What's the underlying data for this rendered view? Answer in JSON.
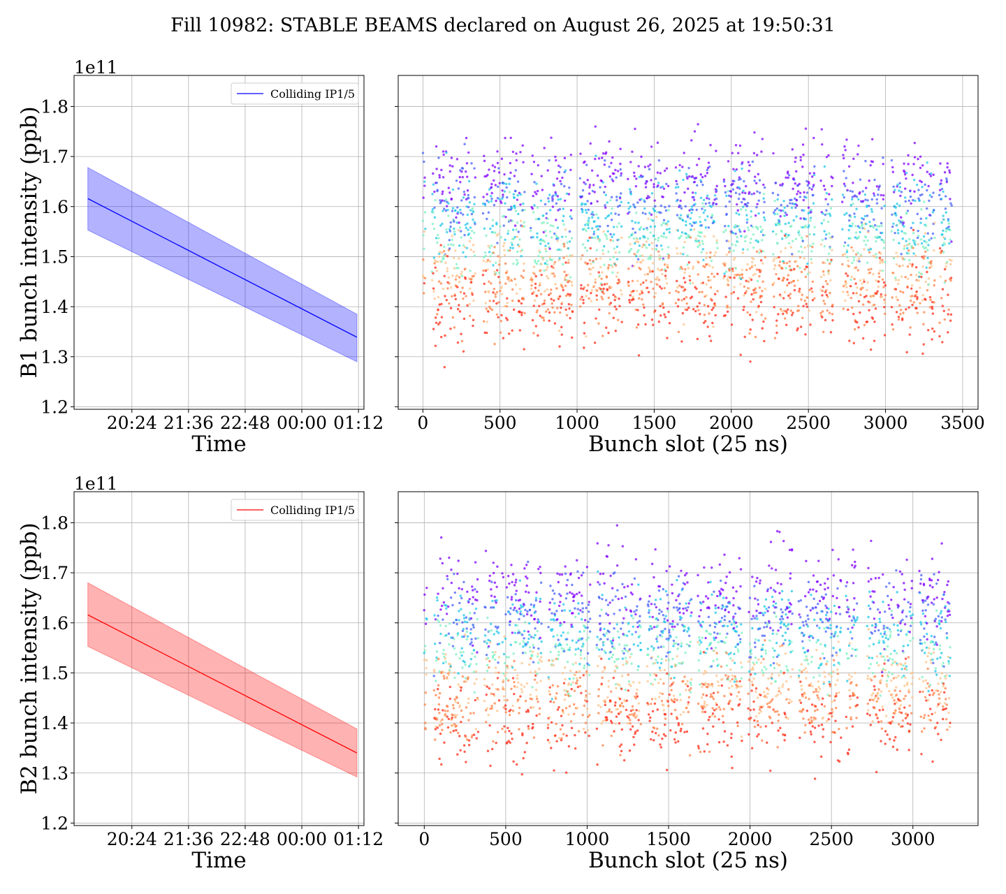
{
  "figure": {
    "suptitle": "Fill 10982: STABLE BEAMS declared on August 26, 2025 at 19:50:31"
  },
  "chart_data": [
    {
      "id": "b1-time",
      "type": "line",
      "title": "",
      "xlabel": "Time",
      "ylabel": "B1 bunch intensity (ppb)",
      "y_offset_label": "1e11",
      "x_tick_labels": [
        "20:24",
        "21:36",
        "22:48",
        "00:00",
        "01:12"
      ],
      "x_tick_minutes": [
        1224,
        1296,
        1368,
        1440,
        1512
      ],
      "xlim_minutes": [
        1150.5,
        1519
      ],
      "ylim": [
        1.195,
        1.862
      ],
      "y_ticks": [
        1.2,
        1.3,
        1.4,
        1.5,
        1.6,
        1.7,
        1.8
      ],
      "y_tick_labels": [
        "1.2",
        "1.3",
        "1.4",
        "1.5",
        "1.6",
        "1.7",
        "1.8"
      ],
      "grid": true,
      "legend": {
        "position": "upper right",
        "entries": [
          "Colliding IP1/5"
        ]
      },
      "series": [
        {
          "name": "Colliding IP1/5",
          "color": "#0000ff",
          "band_color": "#0000ff",
          "x_minutes": [
            1168,
            1510
          ],
          "mean": [
            1.616,
            1.339
          ],
          "upper": [
            1.678,
            1.385
          ],
          "lower": [
            1.553,
            1.29
          ]
        }
      ]
    },
    {
      "id": "b1-slot",
      "type": "scatter",
      "title": "",
      "xlabel": "Bunch slot (25 ns)",
      "ylabel": "",
      "x_ticks": [
        0,
        500,
        1000,
        1500,
        2000,
        2500,
        3000,
        3500
      ],
      "x_tick_labels": [
        "0",
        "500",
        "1000",
        "1500",
        "2000",
        "2500",
        "3000",
        "3500"
      ],
      "y_ticks": [
        1.2,
        1.3,
        1.4,
        1.5,
        1.6,
        1.7,
        1.8
      ],
      "y_tick_labels": [],
      "xlim": [
        -160,
        3600
      ],
      "ylim": [
        1.195,
        1.862
      ],
      "grid": true,
      "colormap": "rainbow",
      "bunch_trains": [
        [
          0,
          15
        ],
        [
          60,
          340
        ],
        [
          390,
          660
        ],
        [
          700,
          970
        ],
        [
          1020,
          1290
        ],
        [
          1330,
          1600
        ],
        [
          1640,
          1910
        ],
        [
          1950,
          2220
        ],
        [
          2270,
          2540
        ],
        [
          2580,
          2660
        ],
        [
          2720,
          3000
        ],
        [
          3040,
          3320
        ],
        [
          3350,
          3430
        ]
      ],
      "bunch_spacing": 3,
      "intensity_range": [
        1.25,
        1.83
      ],
      "color_bands": [
        {
          "color": "#8000ff",
          "center": 1.655,
          "spread": 0.045
        },
        {
          "color": "#4560fa",
          "center": 1.605,
          "spread": 0.04
        },
        {
          "color": "#1cc7e8",
          "center": 1.575,
          "spread": 0.04
        },
        {
          "color": "#7bf0c0",
          "center": 1.535,
          "spread": 0.035
        },
        {
          "color": "#fdc389",
          "center": 1.475,
          "spread": 0.04
        },
        {
          "color": "#ff8045",
          "center": 1.44,
          "spread": 0.04
        },
        {
          "color": "#ff2a15",
          "center": 1.405,
          "spread": 0.045
        }
      ]
    },
    {
      "id": "b2-time",
      "type": "line",
      "title": "",
      "xlabel": "Time",
      "ylabel": "B2 bunch intensity (ppb)",
      "y_offset_label": "1e11",
      "x_tick_labels": [
        "20:24",
        "21:36",
        "22:48",
        "00:00",
        "01:12"
      ],
      "x_tick_minutes": [
        1224,
        1296,
        1368,
        1440,
        1512
      ],
      "xlim_minutes": [
        1150.5,
        1519
      ],
      "ylim": [
        1.195,
        1.862
      ],
      "y_ticks": [
        1.2,
        1.3,
        1.4,
        1.5,
        1.6,
        1.7,
        1.8
      ],
      "y_tick_labels": [
        "1.2",
        "1.3",
        "1.4",
        "1.5",
        "1.6",
        "1.7",
        "1.8"
      ],
      "grid": true,
      "legend": {
        "position": "upper right",
        "entries": [
          "Colliding IP1/5"
        ]
      },
      "series": [
        {
          "name": "Colliding IP1/5",
          "color": "#ff0000",
          "band_color": "#ff0000",
          "x_minutes": [
            1168,
            1510
          ],
          "mean": [
            1.616,
            1.34
          ],
          "upper": [
            1.68,
            1.388
          ],
          "lower": [
            1.553,
            1.292
          ]
        }
      ]
    },
    {
      "id": "b2-slot",
      "type": "scatter",
      "title": "",
      "xlabel": "Bunch slot (25 ns)",
      "ylabel": "",
      "x_ticks": [
        0,
        500,
        1000,
        1500,
        2000,
        2500,
        3000
      ],
      "x_tick_labels": [
        "0",
        "500",
        "1000",
        "1500",
        "2000",
        "2500",
        "3000"
      ],
      "y_ticks": [
        1.2,
        1.3,
        1.4,
        1.5,
        1.6,
        1.7,
        1.8
      ],
      "y_tick_labels": [],
      "xlim": [
        -160,
        3400
      ],
      "ylim": [
        1.195,
        1.862
      ],
      "grid": true,
      "colormap": "rainbow",
      "bunch_trains": [
        [
          0,
          15
        ],
        [
          60,
          330
        ],
        [
          370,
          460
        ],
        [
          480,
          720
        ],
        [
          760,
          1020
        ],
        [
          1060,
          1330
        ],
        [
          1370,
          1640
        ],
        [
          1680,
          1950
        ],
        [
          1990,
          2260
        ],
        [
          2300,
          2560
        ],
        [
          2590,
          2660
        ],
        [
          2720,
          3000
        ],
        [
          3040,
          3230
        ]
      ],
      "bunch_spacing": 3,
      "intensity_range": [
        1.22,
        1.82
      ],
      "color_bands": [
        {
          "color": "#8000ff",
          "center": 1.66,
          "spread": 0.045
        },
        {
          "color": "#4560fa",
          "center": 1.61,
          "spread": 0.04
        },
        {
          "color": "#1cc7e8",
          "center": 1.58,
          "spread": 0.04
        },
        {
          "color": "#7bf0c0",
          "center": 1.54,
          "spread": 0.035
        },
        {
          "color": "#fdc389",
          "center": 1.475,
          "spread": 0.04
        },
        {
          "color": "#ff8045",
          "center": 1.44,
          "spread": 0.04
        },
        {
          "color": "#ff2a15",
          "center": 1.405,
          "spread": 0.045
        }
      ]
    }
  ]
}
